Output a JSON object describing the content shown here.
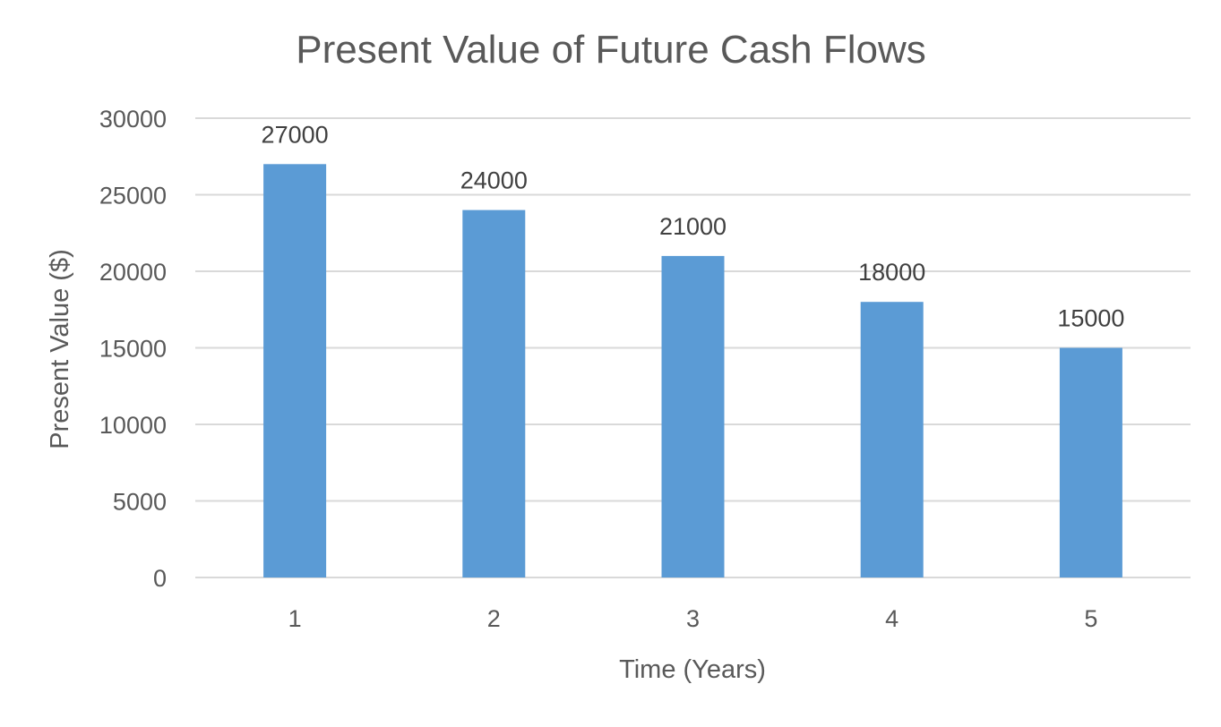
{
  "chart_data": {
    "type": "bar",
    "title": "Present Value of Future Cash Flows",
    "xlabel": "Time (Years)",
    "ylabel": "Present Value ($)",
    "categories": [
      "1",
      "2",
      "3",
      "4",
      "5"
    ],
    "values": [
      27000,
      24000,
      21000,
      18000,
      15000
    ],
    "ylim": [
      0,
      30000
    ],
    "yticks": [
      "0",
      "5000",
      "10000",
      "15000",
      "20000",
      "25000",
      "30000"
    ],
    "data_labels": [
      "27000",
      "24000",
      "21000",
      "18000",
      "15000"
    ],
    "bar_color": "#5b9bd5",
    "grid": true,
    "legend": "none"
  }
}
